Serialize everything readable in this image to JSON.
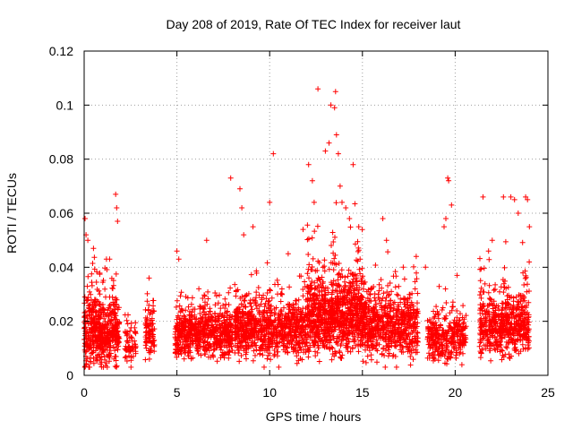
{
  "chart_data": {
    "type": "scatter",
    "title": "Day 208 of 2019, Rate Of TEC Index for receiver laut",
    "xlabel": "GPS time / hours",
    "ylabel": "ROTI / TECUs",
    "xlim": [
      0,
      25
    ],
    "ylim": [
      0,
      0.12
    ],
    "x_ticks": [
      "0",
      "5",
      "10",
      "15",
      "20",
      "25"
    ],
    "y_ticks": [
      "0",
      "0.02",
      "0.04",
      "0.06",
      "0.08",
      "0.1",
      "0.12"
    ],
    "grid": true,
    "marker": "plus",
    "color": "#ff0000",
    "series": [
      {
        "clusters": [
          {
            "x_range": [
              0.0,
              1.9
            ],
            "y_center": 0.016,
            "y_spread": 0.01,
            "count": 520
          },
          {
            "x_range": [
              2.2,
              2.8
            ],
            "y_center": 0.012,
            "y_spread": 0.006,
            "count": 60
          },
          {
            "x_range": [
              3.3,
              3.8
            ],
            "y_center": 0.016,
            "y_spread": 0.008,
            "count": 90
          },
          {
            "x_range": [
              4.9,
              8.0
            ],
            "y_center": 0.015,
            "y_spread": 0.007,
            "count": 650
          },
          {
            "x_range": [
              8.1,
              12.0
            ],
            "y_center": 0.017,
            "y_spread": 0.008,
            "count": 800
          },
          {
            "x_range": [
              12.0,
              15.0
            ],
            "y_center": 0.022,
            "y_spread": 0.012,
            "count": 900
          },
          {
            "x_range": [
              15.0,
              18.0
            ],
            "y_center": 0.018,
            "y_spread": 0.009,
            "count": 650
          },
          {
            "x_range": [
              18.5,
              20.6
            ],
            "y_center": 0.014,
            "y_spread": 0.007,
            "count": 330
          },
          {
            "x_range": [
              21.3,
              24.0
            ],
            "y_center": 0.018,
            "y_spread": 0.009,
            "count": 560
          }
        ],
        "outliers": [
          [
            0.05,
            0.058
          ],
          [
            0.1,
            0.052
          ],
          [
            0.2,
            0.05
          ],
          [
            0.5,
            0.047
          ],
          [
            1.2,
            0.043
          ],
          [
            1.7,
            0.067
          ],
          [
            1.75,
            0.062
          ],
          [
            1.8,
            0.057
          ],
          [
            3.5,
            0.036
          ],
          [
            5.0,
            0.046
          ],
          [
            5.1,
            0.043
          ],
          [
            6.6,
            0.05
          ],
          [
            7.9,
            0.073
          ],
          [
            8.4,
            0.069
          ],
          [
            8.5,
            0.062
          ],
          [
            8.6,
            0.052
          ],
          [
            9.1,
            0.055
          ],
          [
            10.0,
            0.064
          ],
          [
            10.2,
            0.082
          ],
          [
            11.0,
            0.045
          ],
          [
            11.8,
            0.054
          ],
          [
            12.1,
            0.078
          ],
          [
            12.3,
            0.072
          ],
          [
            12.4,
            0.064
          ],
          [
            12.6,
            0.106
          ],
          [
            13.0,
            0.083
          ],
          [
            13.2,
            0.086
          ],
          [
            13.3,
            0.1
          ],
          [
            13.5,
            0.099
          ],
          [
            13.55,
            0.105
          ],
          [
            13.6,
            0.089
          ],
          [
            13.7,
            0.082
          ],
          [
            13.8,
            0.07
          ],
          [
            13.9,
            0.064
          ],
          [
            14.1,
            0.062
          ],
          [
            14.3,
            0.058
          ],
          [
            14.5,
            0.078
          ],
          [
            14.8,
            0.055
          ],
          [
            16.1,
            0.058
          ],
          [
            16.3,
            0.05
          ],
          [
            17.2,
            0.04
          ],
          [
            17.9,
            0.044
          ],
          [
            18.4,
            0.04
          ],
          [
            19.4,
            0.055
          ],
          [
            19.5,
            0.058
          ],
          [
            19.6,
            0.073
          ],
          [
            19.65,
            0.072
          ],
          [
            19.8,
            0.063
          ],
          [
            20.1,
            0.037
          ],
          [
            21.5,
            0.066
          ],
          [
            21.8,
            0.046
          ],
          [
            22.0,
            0.05
          ],
          [
            22.6,
            0.066
          ],
          [
            23.0,
            0.066
          ],
          [
            23.2,
            0.065
          ],
          [
            23.4,
            0.06
          ],
          [
            23.8,
            0.066
          ],
          [
            23.9,
            0.065
          ],
          [
            24.0,
            0.055
          ]
        ]
      }
    ]
  }
}
